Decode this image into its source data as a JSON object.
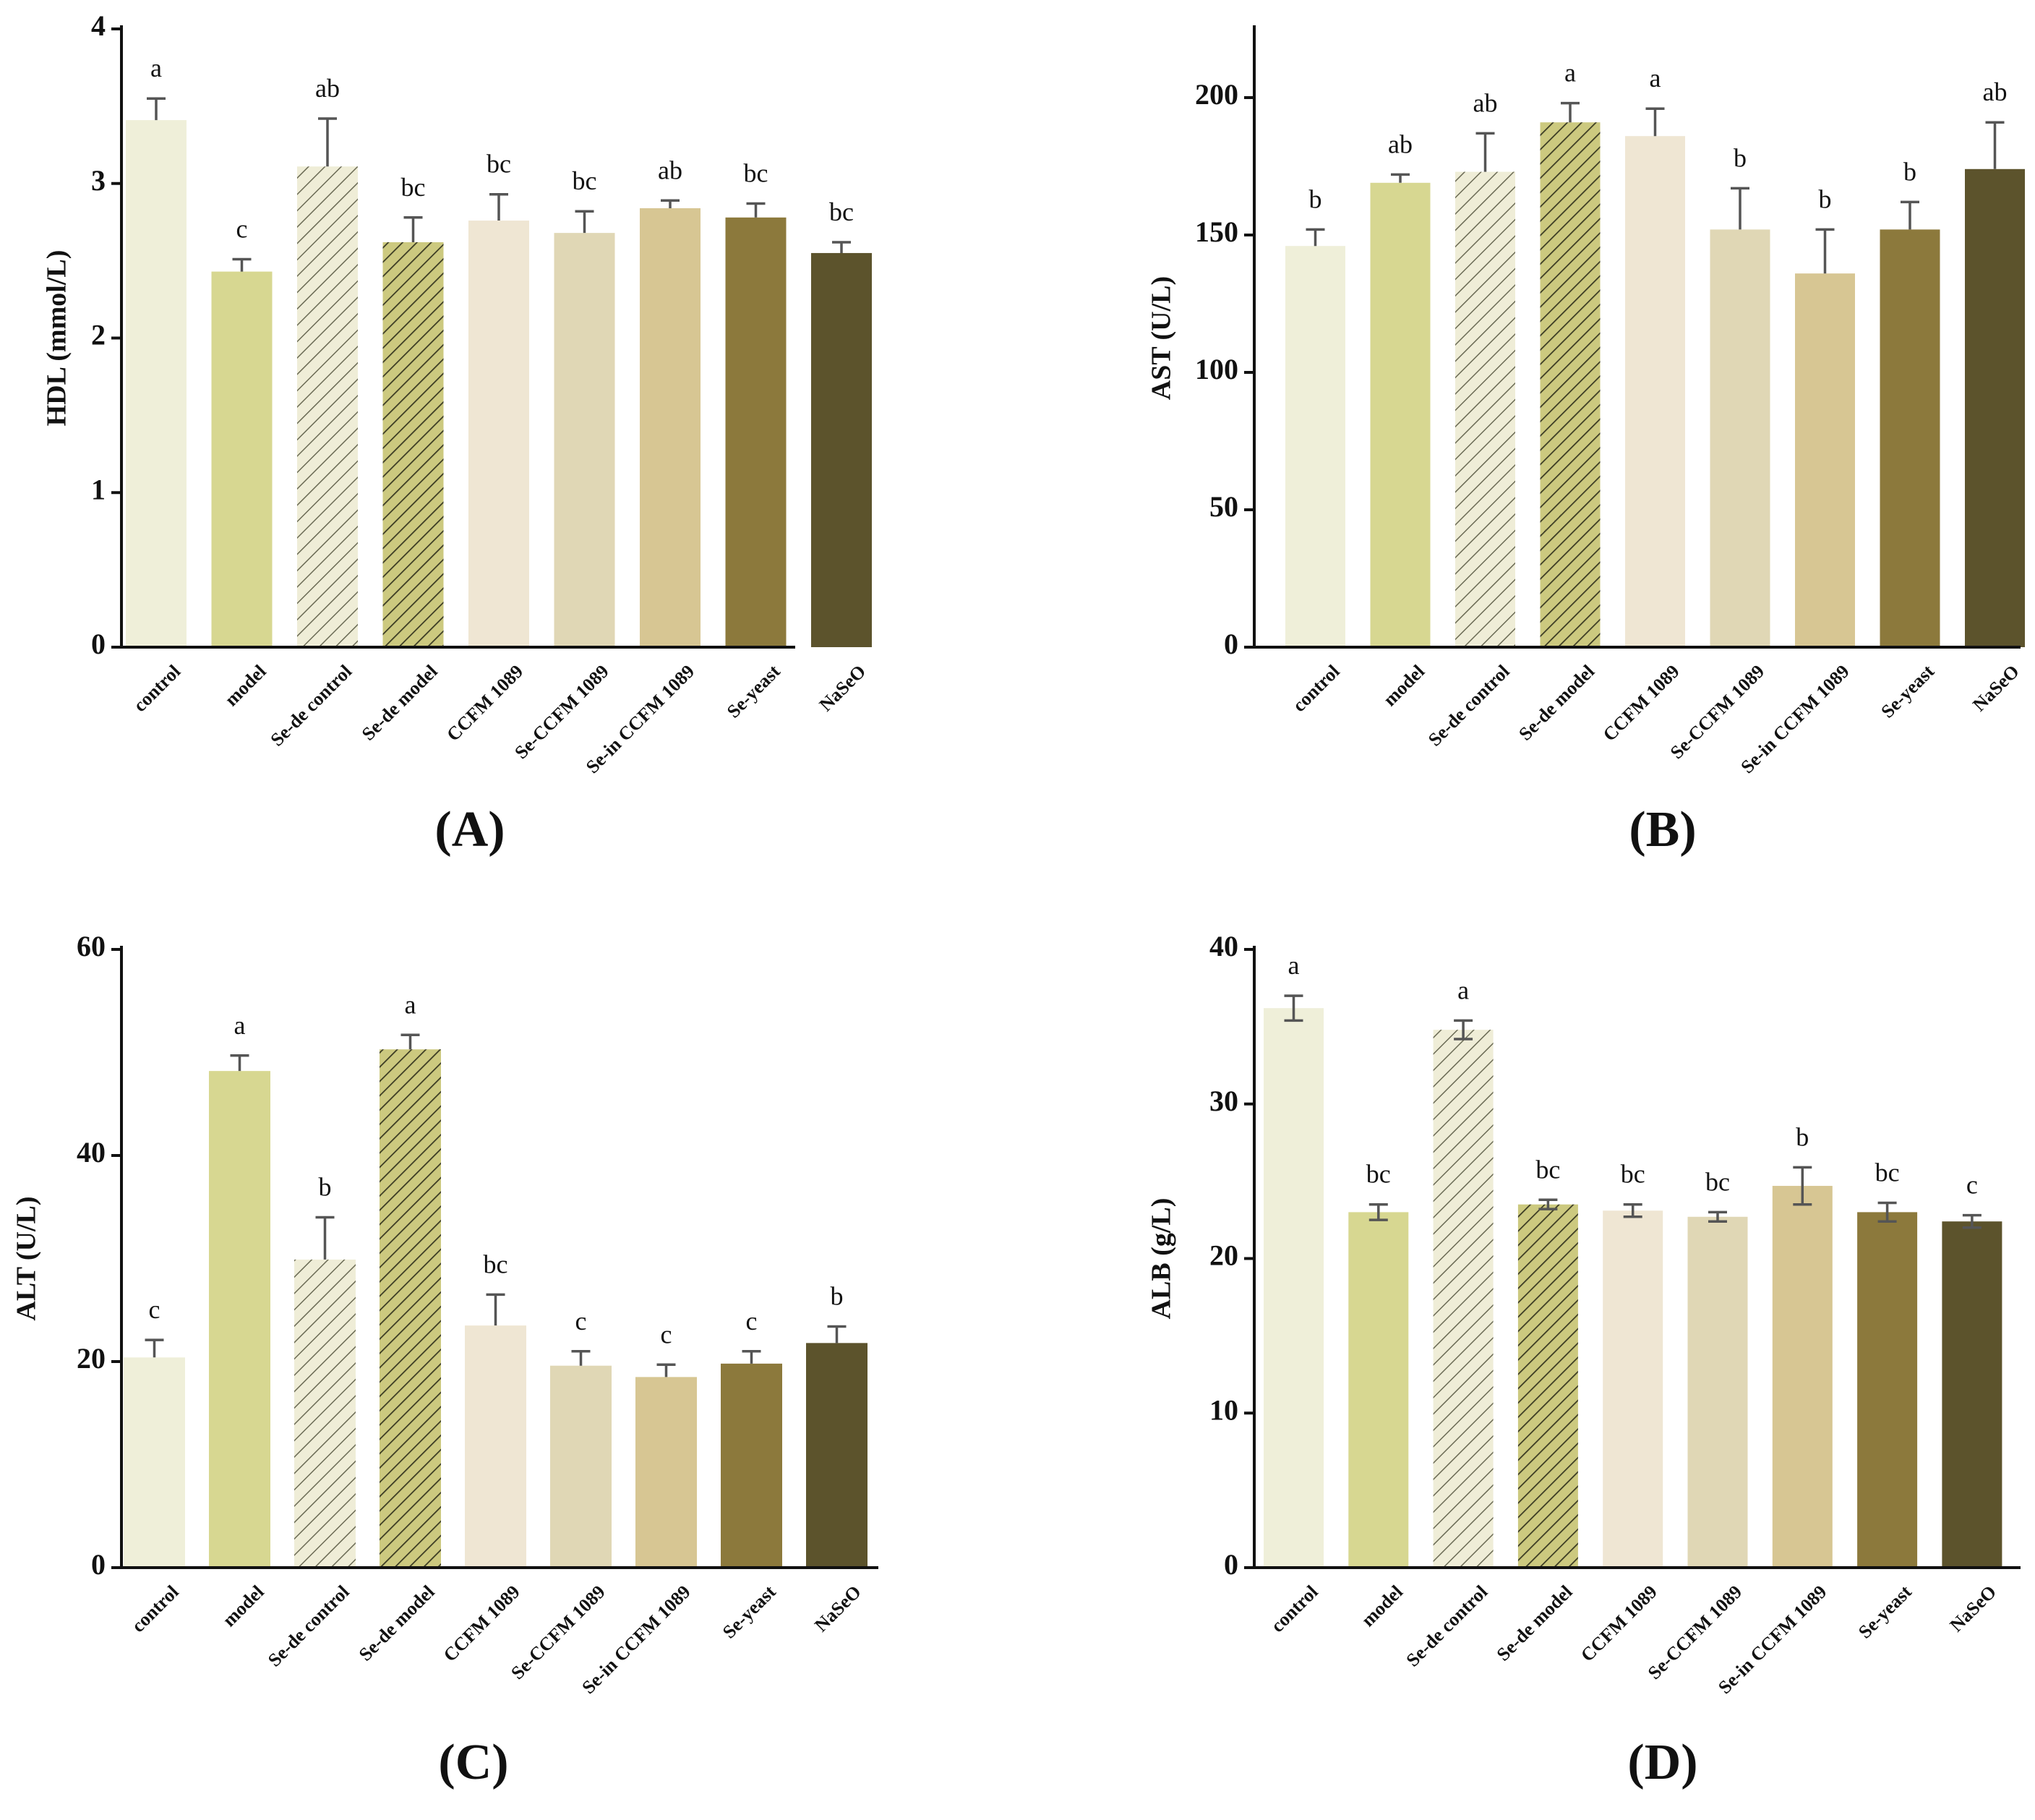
{
  "colors": [
    "#efefd9",
    "#d7d791",
    "#efedd7",
    "#ccc97f",
    "#efe6d3",
    "#e0d7b5",
    "#d7c693",
    "#8c793c",
    "#5c532c"
  ],
  "hatch": [
    false,
    false,
    true,
    true,
    false,
    false,
    false,
    false,
    false
  ],
  "chart_data": [
    {
      "type": "bar",
      "panel_label": "(A)",
      "ylabel": "HDL (mmol/L)",
      "ylim": [
        0,
        4
      ],
      "yticks": [
        0,
        1,
        2,
        3,
        4
      ],
      "categories": [
        "control",
        "model",
        "Se-de control",
        "Se-de model",
        "CCFM 1089",
        "Se-CCFM 1089",
        "Se-in CCFM 1089",
        "Se-yeast",
        "NaSeO"
      ],
      "values": [
        3.41,
        2.43,
        3.11,
        2.62,
        2.76,
        2.68,
        2.84,
        2.78,
        2.55
      ],
      "errors": [
        0.14,
        0.08,
        0.31,
        0.16,
        0.17,
        0.14,
        0.05,
        0.09,
        0.07
      ],
      "error_style": "up",
      "significance": [
        "a",
        "c",
        "ab",
        "bc",
        "bc",
        "bc",
        "ab",
        "bc",
        "bc"
      ]
    },
    {
      "type": "bar",
      "panel_label": "(B)",
      "ylabel": "AST (U/L)",
      "ylim": [
        0,
        225
      ],
      "yticks": [
        0,
        50,
        100,
        150,
        200
      ],
      "categories": [
        "control",
        "model",
        "Se-de control",
        "Se-de model",
        "CCFM 1089",
        "Se-CCFM 1089",
        "Se-in CCFM 1089",
        "Se-yeast",
        "NaSeO"
      ],
      "values": [
        146,
        169,
        173,
        191,
        186,
        152,
        136,
        152,
        174
      ],
      "errors": [
        6,
        3,
        14,
        7,
        10,
        15,
        16,
        10,
        17
      ],
      "error_style": "up",
      "significance": [
        "b",
        "ab",
        "ab",
        "a",
        "a",
        "b",
        "b",
        "b",
        "ab"
      ]
    },
    {
      "type": "bar",
      "panel_label": "(C)",
      "ylabel": "ALT (U/L)",
      "ylim": [
        0,
        60
      ],
      "yticks": [
        0,
        20,
        40,
        60
      ],
      "categories": [
        "control",
        "model",
        "Se-de control",
        "Se-de model",
        "CCFM 1089",
        "Se-CCFM 1089",
        "Se-in CCFM 1089",
        "Se-yeast",
        "NaSeO"
      ],
      "values": [
        20.4,
        48.2,
        29.9,
        50.3,
        23.5,
        19.6,
        18.5,
        19.8,
        21.8
      ],
      "errors": [
        1.7,
        1.5,
        4.1,
        1.4,
        3.0,
        1.4,
        1.2,
        1.2,
        1.6
      ],
      "error_style": "up",
      "significance": [
        "c",
        "a",
        "b",
        "a",
        "bc",
        "c",
        "c",
        "c",
        "b"
      ]
    },
    {
      "type": "bar",
      "panel_label": "(D)",
      "ylabel": "ALB (g/L)",
      "ylim": [
        0,
        40
      ],
      "yticks": [
        0,
        10,
        20,
        30,
        40
      ],
      "categories": [
        "control",
        "model",
        "Se-de control",
        "Se-de model",
        "CCFM 1089",
        "Se-CCFM 1089",
        "Se-in CCFM 1089",
        "Se-yeast",
        "NaSeO"
      ],
      "values": [
        36.2,
        23.0,
        34.8,
        23.5,
        23.1,
        22.7,
        24.7,
        23.0,
        22.4
      ],
      "errors": [
        0.8,
        0.5,
        0.6,
        0.3,
        0.4,
        0.3,
        1.2,
        0.6,
        0.4
      ],
      "error_style": "both",
      "significance": [
        "a",
        "bc",
        "a",
        "bc",
        "bc",
        "bc",
        "b",
        "bc",
        "c"
      ]
    }
  ]
}
